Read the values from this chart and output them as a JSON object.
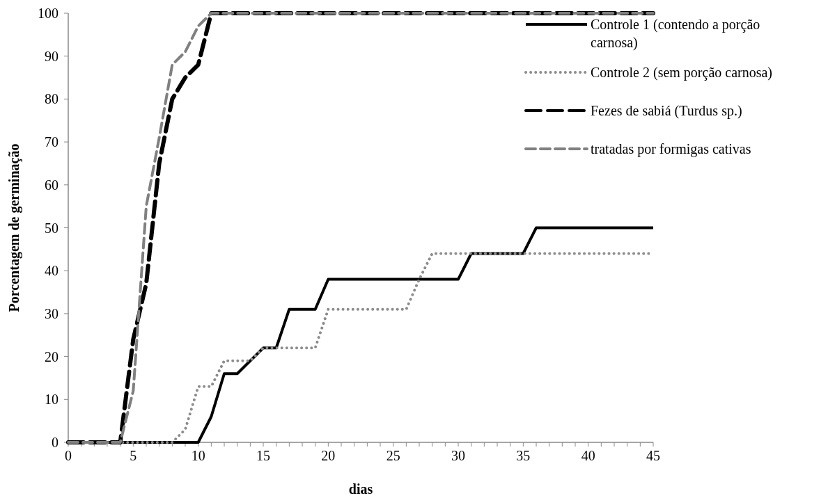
{
  "chart_data": {
    "type": "line",
    "xlabel": "dias",
    "ylabel": "Porcentagem de germinação",
    "xlim": [
      0,
      45
    ],
    "ylim": [
      0,
      100
    ],
    "xticks": [
      0,
      {
        "value": 1,
        "label": null
      },
      {
        "value": 2,
        "label": null
      },
      {
        "value": 3,
        "label": null
      },
      {
        "value": 4,
        "label": null
      },
      5,
      {
        "value": 6,
        "label": null
      },
      {
        "value": 7,
        "label": null
      },
      {
        "value": 8,
        "label": null
      },
      {
        "value": 9,
        "label": null
      },
      10,
      {
        "value": 11,
        "label": null
      },
      {
        "value": 12,
        "label": null
      },
      {
        "value": 13,
        "label": null
      },
      {
        "value": 14,
        "label": null
      },
      15,
      {
        "value": 16,
        "label": null
      },
      {
        "value": 17,
        "label": null
      },
      {
        "value": 18,
        "label": null
      },
      {
        "value": 19,
        "label": null
      },
      20,
      {
        "value": 21,
        "label": null
      },
      {
        "value": 22,
        "label": null
      },
      {
        "value": 23,
        "label": null
      },
      {
        "value": 24,
        "label": null
      },
      25,
      {
        "value": 26,
        "label": null
      },
      {
        "value": 27,
        "label": null
      },
      {
        "value": 28,
        "label": null
      },
      {
        "value": 29,
        "label": null
      },
      30,
      {
        "value": 31,
        "label": null
      },
      {
        "value": 32,
        "label": null
      },
      {
        "value": 33,
        "label": null
      },
      {
        "value": 34,
        "label": null
      },
      35,
      {
        "value": 36,
        "label": null
      },
      {
        "value": 37,
        "label": null
      },
      {
        "value": 38,
        "label": null
      },
      {
        "value": 39,
        "label": null
      },
      40,
      {
        "value": 41,
        "label": null
      },
      {
        "value": 42,
        "label": null
      },
      {
        "value": 43,
        "label": null
      },
      {
        "value": 44,
        "label": null
      },
      45
    ],
    "yticks": [
      0,
      10,
      20,
      30,
      40,
      50,
      60,
      70,
      80,
      90,
      100
    ],
    "grid": false,
    "legend": "top right",
    "x": [
      0,
      1,
      2,
      3,
      4,
      5,
      6,
      7,
      8,
      9,
      10,
      11,
      12,
      13,
      14,
      15,
      16,
      17,
      18,
      19,
      20,
      21,
      22,
      23,
      24,
      25,
      26,
      27,
      28,
      29,
      30,
      31,
      32,
      33,
      34,
      35,
      36,
      37,
      38,
      39,
      40,
      41,
      42,
      43,
      44,
      45
    ],
    "series": [
      {
        "name": "Controle 1 (contendo a porção carnosa)",
        "color": "#000000",
        "line_style": "solid",
        "values": [
          0,
          0,
          0,
          0,
          0,
          0,
          0,
          0,
          0,
          0,
          0,
          6,
          16,
          16,
          19,
          22,
          22,
          31,
          31,
          31,
          38,
          38,
          38,
          38,
          38,
          38,
          38,
          38,
          38,
          38,
          38,
          44,
          44,
          44,
          44,
          44,
          50,
          50,
          50,
          50,
          50,
          50,
          50,
          50,
          50,
          50
        ]
      },
      {
        "name": "Controle 2 (sem porção carnosa)",
        "color": "#8c8c8c",
        "line_style": "dotted",
        "values": [
          0,
          0,
          0,
          0,
          0,
          0,
          0,
          0,
          0,
          3,
          13,
          13,
          19,
          19,
          19,
          22,
          22,
          22,
          22,
          22,
          31,
          31,
          31,
          31,
          31,
          31,
          31,
          38,
          44,
          44,
          44,
          44,
          44,
          44,
          44,
          44,
          44,
          44,
          44,
          44,
          44,
          44,
          44,
          44,
          44,
          44
        ]
      },
      {
        "name": "Fezes de sabiá (Turdus sp.)",
        "color": "#000000",
        "line_style": "dashed",
        "values": [
          0,
          0,
          0,
          0,
          0,
          24,
          37,
          65,
          80,
          85,
          88,
          100,
          100,
          100,
          100,
          100,
          100,
          100,
          100,
          100,
          100,
          100,
          100,
          100,
          100,
          100,
          100,
          100,
          100,
          100,
          100,
          100,
          100,
          100,
          100,
          100,
          100,
          100,
          100,
          100,
          100,
          100,
          100,
          100,
          100,
          100
        ]
      },
      {
        "name": "tratadas por formigas cativas",
        "color": "#808080",
        "line_style": "dashed",
        "values": [
          0,
          0,
          0,
          0,
          0,
          12,
          55,
          71,
          88,
          91,
          97,
          100,
          100,
          100,
          100,
          100,
          100,
          100,
          100,
          100,
          100,
          100,
          100,
          100,
          100,
          100,
          100,
          100,
          100,
          100,
          100,
          100,
          100,
          100,
          100,
          100,
          100,
          100,
          100,
          100,
          100,
          100,
          100,
          100,
          100,
          100
        ]
      }
    ]
  }
}
